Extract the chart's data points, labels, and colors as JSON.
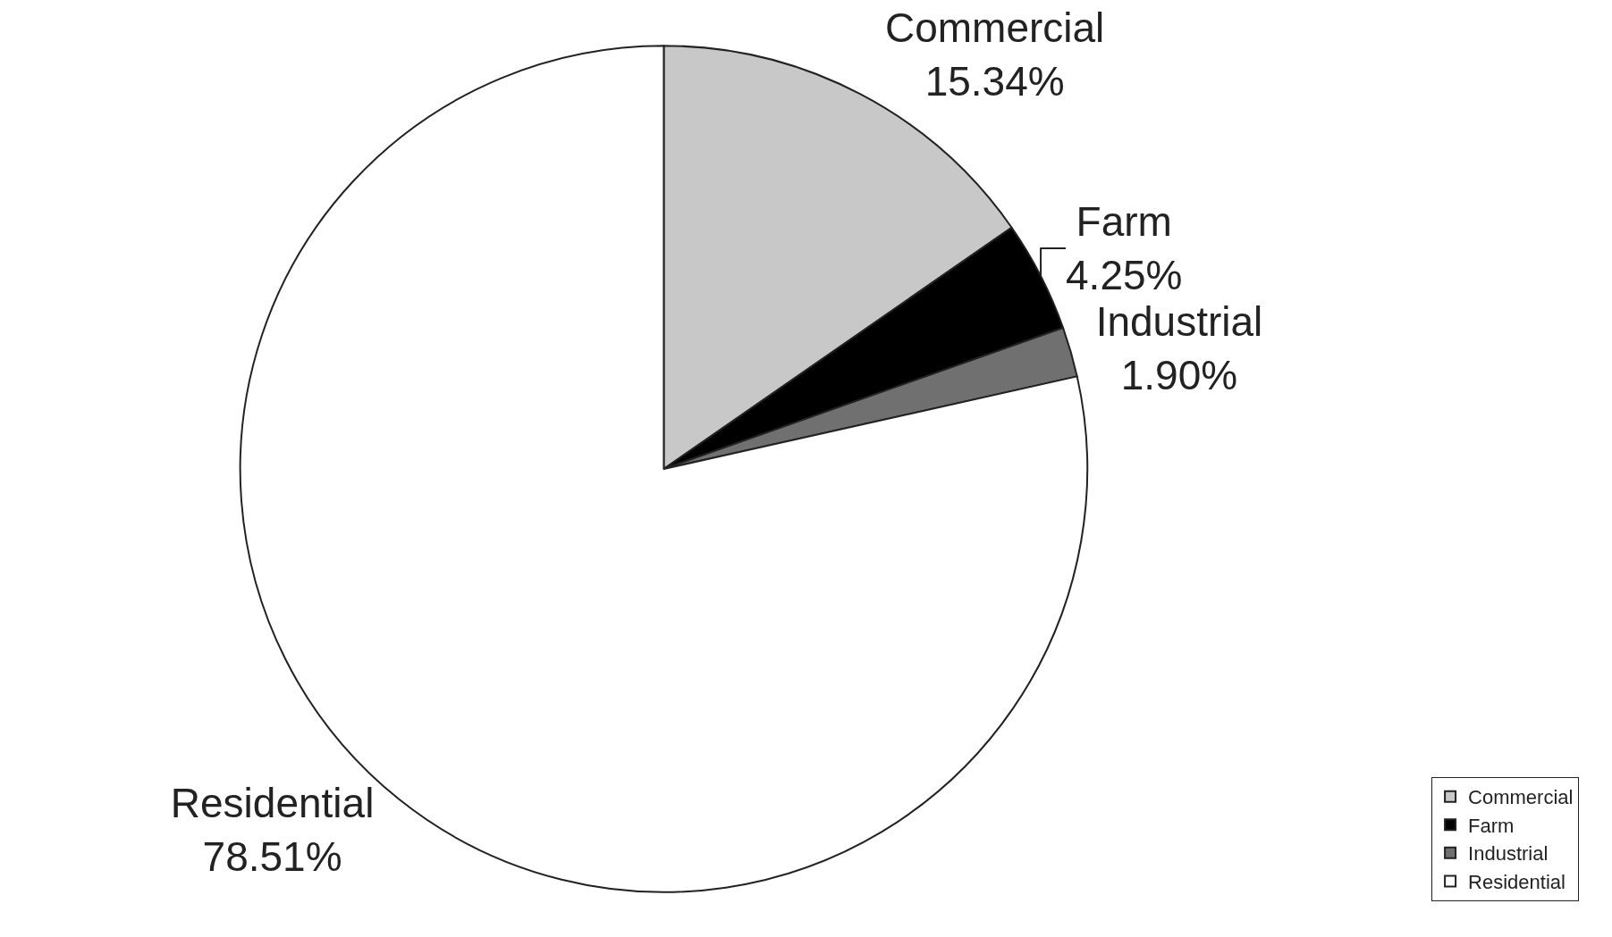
{
  "chart_data": {
    "type": "pie",
    "categories": [
      "Commercial",
      "Farm",
      "Industrial",
      "Residential"
    ],
    "values": [
      15.34,
      4.25,
      1.9,
      78.51
    ],
    "value_labels": [
      "15.34%",
      "4.25%",
      "1.90%",
      "78.51%"
    ],
    "colors": [
      "#c8c8c8",
      "#000000",
      "#707070",
      "#ffffff"
    ],
    "legend": "bottom right"
  }
}
